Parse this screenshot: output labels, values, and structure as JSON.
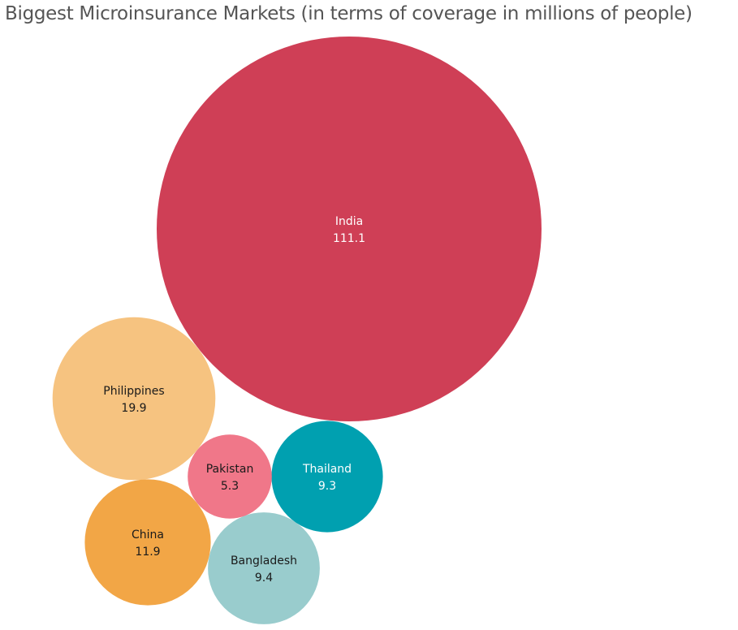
{
  "chart_data": {
    "type": "bubble",
    "title": "Biggest Microinsurance Markets (in terms of coverage in millions of people)",
    "unit": "millions of people",
    "items": [
      {
        "name": "India",
        "value": 111.1,
        "value_label": "111.1",
        "color": "#cf3f56",
        "text_color": "#ffffff"
      },
      {
        "name": "Philippines",
        "value": 19.9,
        "value_label": "19.9",
        "color": "#f6c380",
        "text_color": "#1a1a1a"
      },
      {
        "name": "China",
        "value": 11.9,
        "value_label": "11.9",
        "color": "#f2a646",
        "text_color": "#1a1a1a"
      },
      {
        "name": "Bangladesh",
        "value": 9.4,
        "value_label": "9.4",
        "color": "#99cccd",
        "text_color": "#1a1a1a"
      },
      {
        "name": "Thailand",
        "value": 9.3,
        "value_label": "9.3",
        "color": "#00a0b0",
        "text_color": "#ffffff"
      },
      {
        "name": "Pakistan",
        "value": 5.3,
        "value_label": "5.3",
        "color": "#f07789",
        "text_color": "#1a1a1a"
      }
    ]
  }
}
